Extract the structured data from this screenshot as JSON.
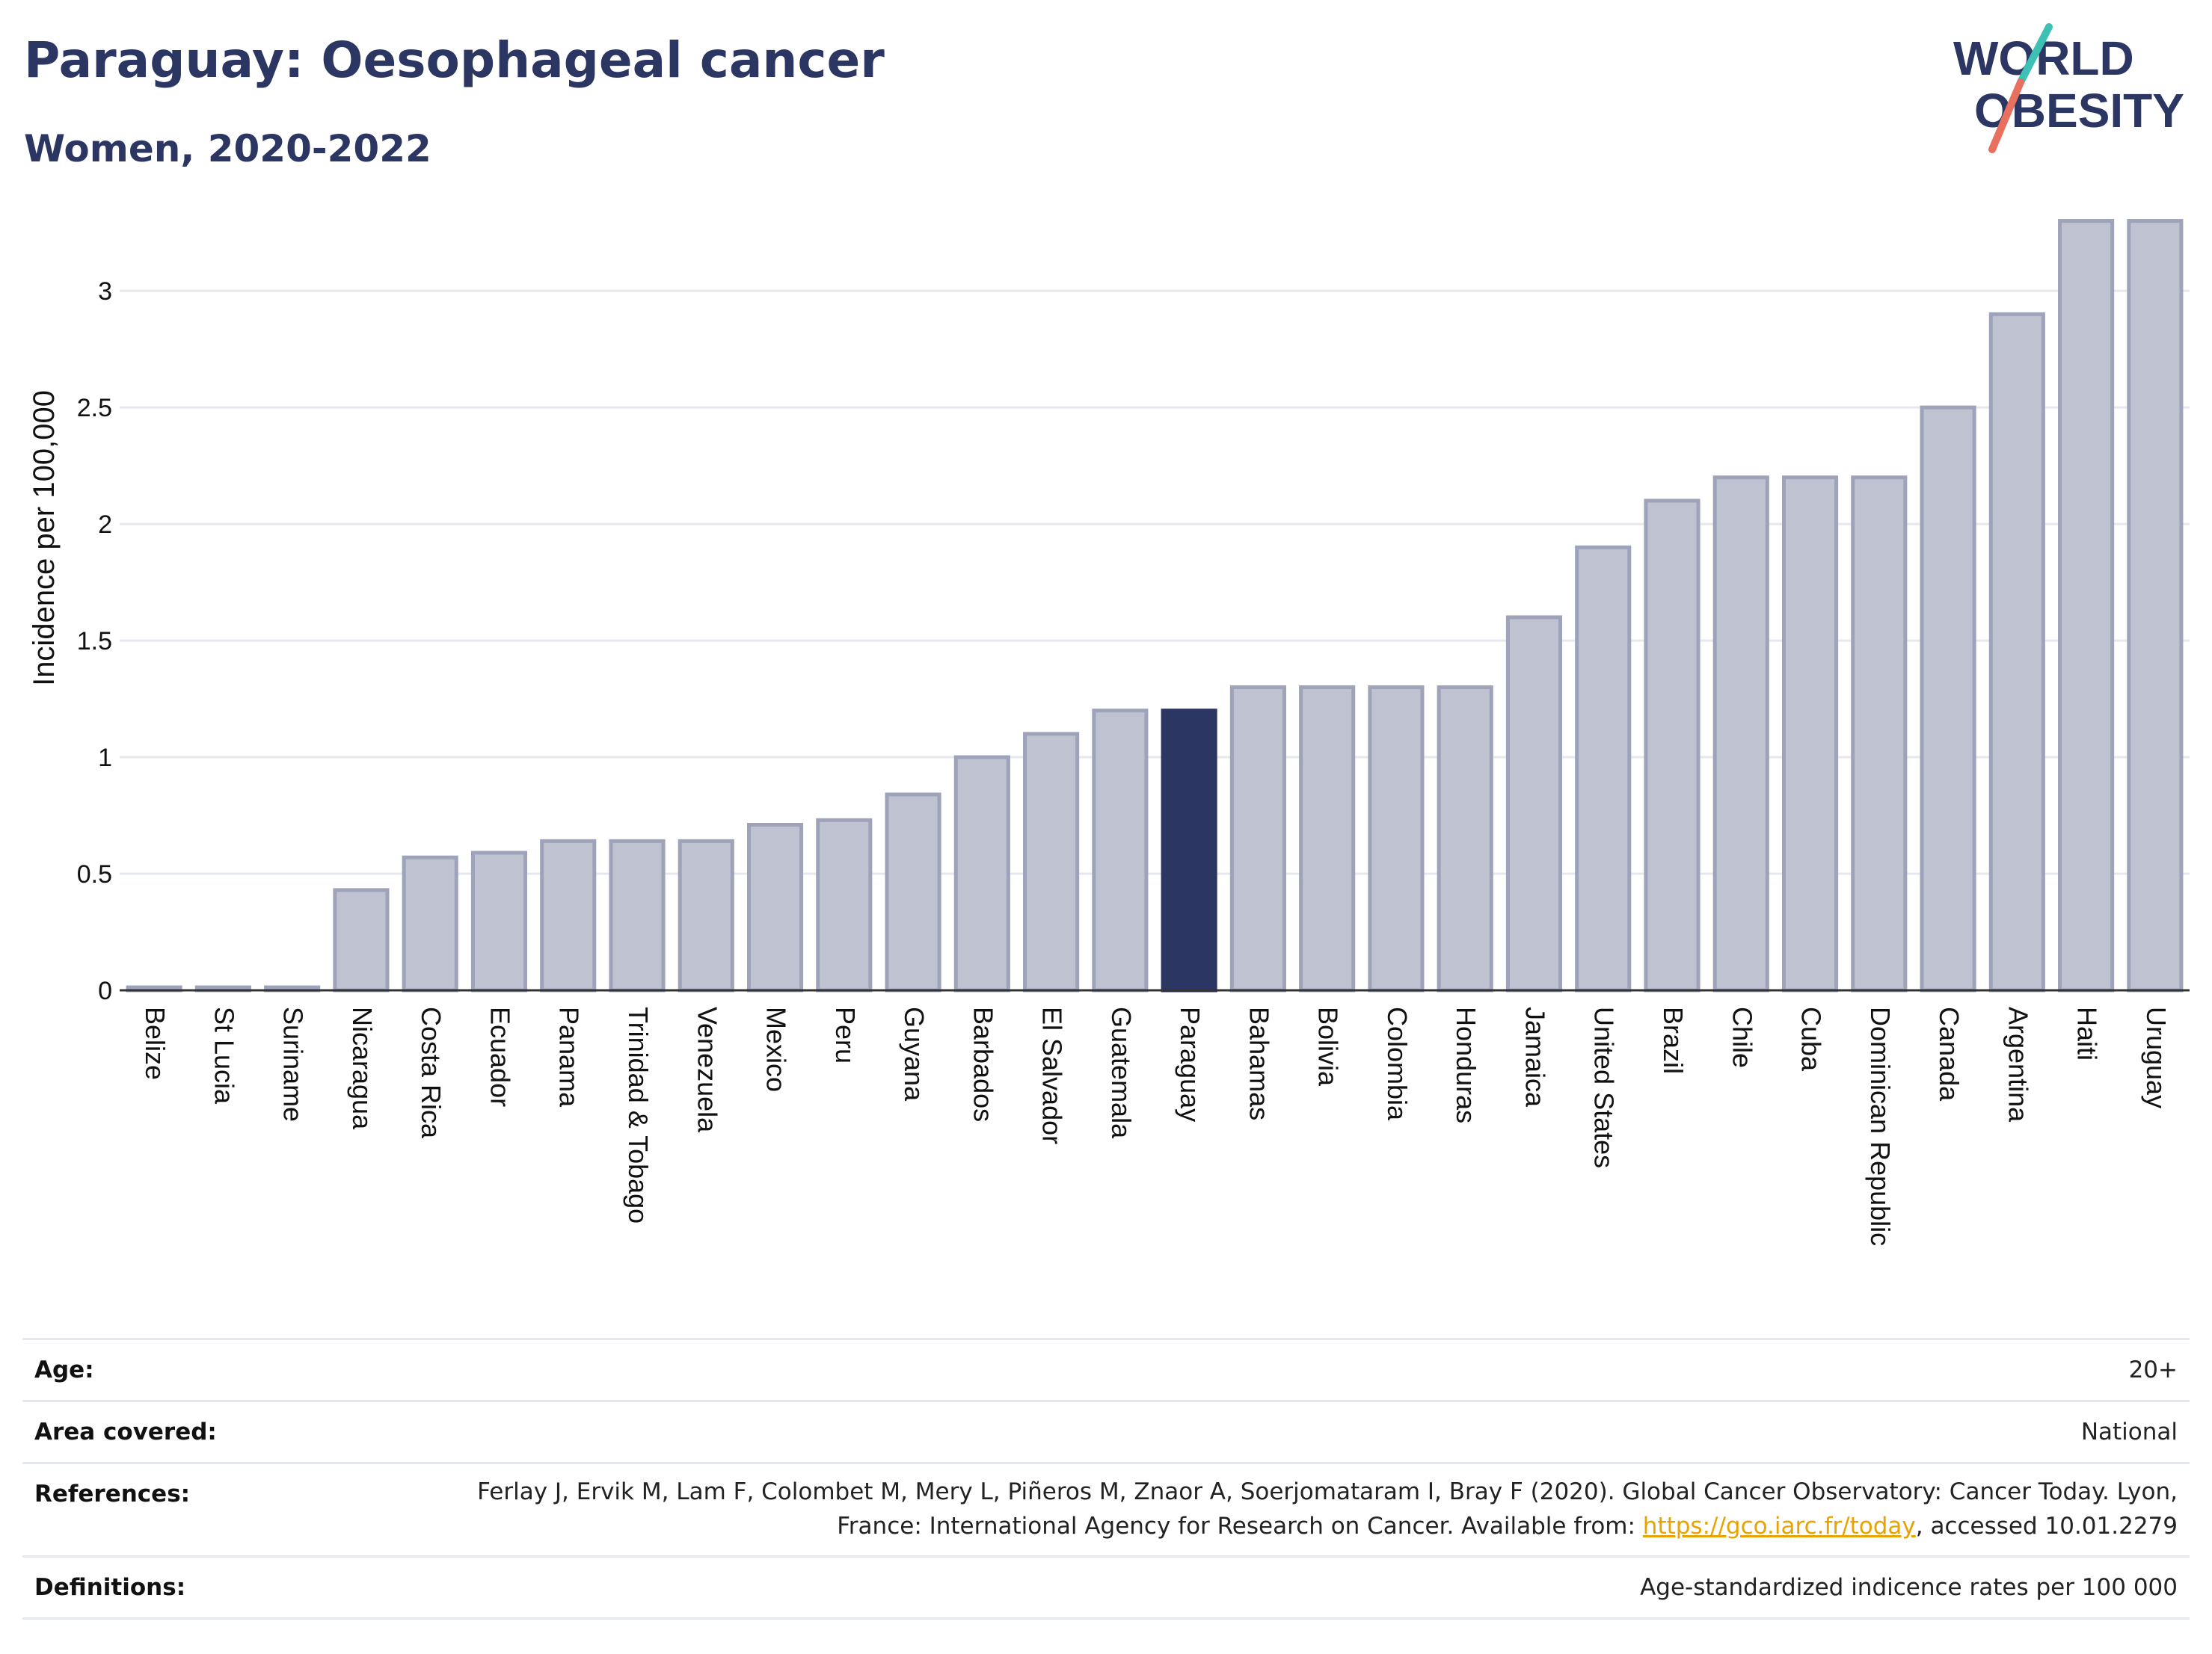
{
  "header": {
    "title": "Paraguay: Oesophageal cancer",
    "subtitle": "Women, 2020-2022"
  },
  "logo": {
    "line1": "WORLD",
    "line2": "OBESITY",
    "accent_colors": [
      "#3cc1b4",
      "#e8705f"
    ],
    "text_color": "#2b3663"
  },
  "colors": {
    "highlight_bar": "#2b3663",
    "other_bar_fill": "#bfc3d1",
    "other_bar_stroke": "#9ea3b9",
    "grid": "#e6e8ef"
  },
  "chart_data": {
    "type": "bar",
    "ylabel": "Incidence per 100,000",
    "xlabel": "",
    "ylim": [
      0,
      3.35
    ],
    "yticks": [
      0,
      0.5,
      1,
      1.5,
      2,
      2.5,
      3
    ],
    "ytick_labels": [
      "0",
      "0.5",
      "1",
      "1.5",
      "2",
      "2.5",
      "3"
    ],
    "grid": true,
    "highlight": "Paraguay",
    "categories": [
      "Belize",
      "St Lucia",
      "Suriname",
      "Nicaragua",
      "Costa Rica",
      "Ecuador",
      "Panama",
      "Trinidad & Tobago",
      "Venezuela",
      "Mexico",
      "Peru",
      "Guyana",
      "Barbados",
      "El Salvador",
      "Guatemala",
      "Paraguay",
      "Bahamas",
      "Bolivia",
      "Colombia",
      "Honduras",
      "Jamaica",
      "United States",
      "Brazil",
      "Chile",
      "Cuba",
      "Dominican Republic",
      "Canada",
      "Argentina",
      "Haiti",
      "Uruguay"
    ],
    "values": [
      0,
      0,
      0,
      0.43,
      0.57,
      0.59,
      0.64,
      0.64,
      0.64,
      0.71,
      0.73,
      0.84,
      1.0,
      1.1,
      1.2,
      1.2,
      1.3,
      1.3,
      1.3,
      1.3,
      1.6,
      1.9,
      2.1,
      2.2,
      2.2,
      2.2,
      2.5,
      2.9,
      3.3,
      3.3
    ]
  },
  "meta": {
    "age_label": "Age:",
    "age_value": "20+",
    "area_label": "Area covered:",
    "area_value": "National",
    "references_label": "References:",
    "references_text": "Ferlay J, Ervik M, Lam F, Colombet M, Mery L, Piñeros M, Znaor A, Soerjomataram I, Bray F (2020). Global Cancer Observatory: Cancer Today. Lyon, France: International Agency for Research on Cancer. Available from: ",
    "references_link": "https://gco.iarc.fr/today",
    "references_suffix": ", accessed 10.01.2279",
    "definitions_label": "Definitions:",
    "definitions_value": "Age-standardized indicence rates per 100 000"
  }
}
